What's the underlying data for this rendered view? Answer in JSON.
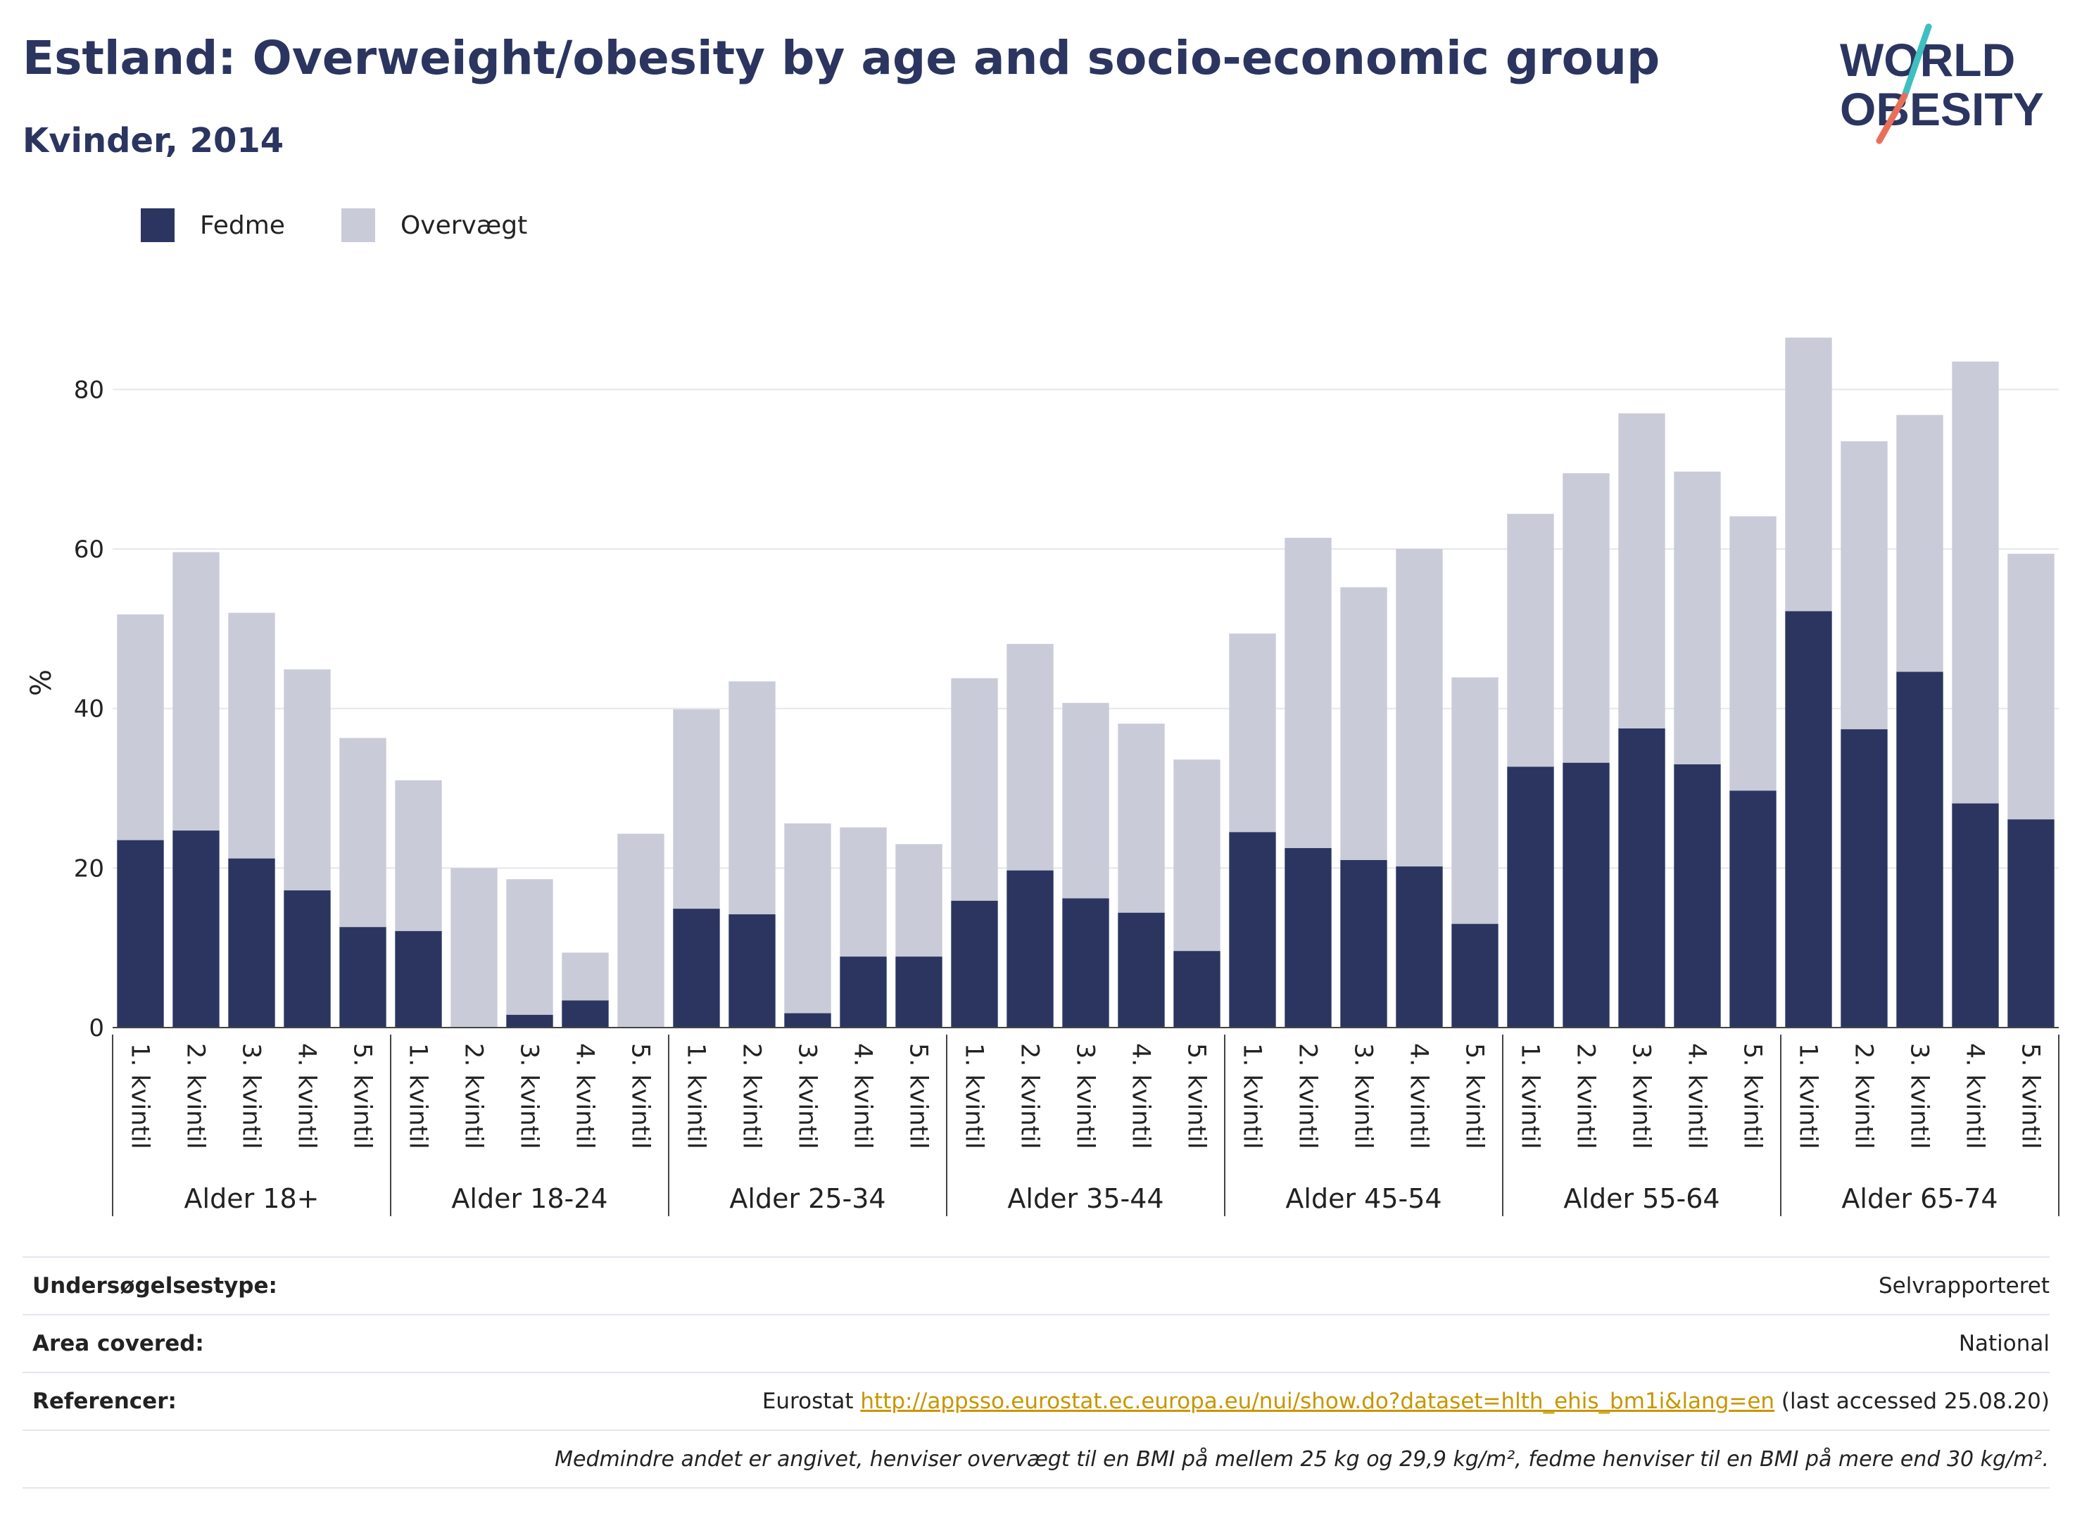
{
  "header": {
    "title": "Estland: Overweight/obesity by age and socio-economic group",
    "subtitle": "Kvinder, 2014"
  },
  "logo": {
    "line1": "WORLD",
    "line2": "OBESITY",
    "accent_colors": [
      "#3fbfbf",
      "#e8705a"
    ],
    "text_color": "#2b3560"
  },
  "legend": [
    {
      "label": "Fedme",
      "color": "#2b3560"
    },
    {
      "label": "Overvægt",
      "color": "#c9cbd8"
    }
  ],
  "chart_data": {
    "type": "bar",
    "stacked": true,
    "ylabel": "%",
    "xlabel": "",
    "ylim": [
      0,
      90
    ],
    "yticks": [
      0,
      20,
      40,
      60,
      80
    ],
    "grid": true,
    "legend_position": "top-left",
    "groups": [
      "Alder 18+",
      "Alder 18-24",
      "Alder 25-34",
      "Alder 35-44",
      "Alder 45-54",
      "Alder 55-64",
      "Alder 65-74"
    ],
    "categories": [
      "1. kvintil",
      "2. kvintil",
      "3. kvintil",
      "4. kvintil",
      "5. kvintil"
    ],
    "series": [
      {
        "name": "Fedme",
        "color": "#2b3560",
        "values": [
          [
            23.5,
            24.7,
            21.2,
            17.2,
            12.6
          ],
          [
            12.1,
            0,
            1.6,
            3.4,
            0
          ],
          [
            14.9,
            14.2,
            1.8,
            8.9,
            8.9
          ],
          [
            15.9,
            19.7,
            16.2,
            14.4,
            9.6
          ],
          [
            24.5,
            22.5,
            21.0,
            20.2,
            13.0
          ],
          [
            32.7,
            33.2,
            37.5,
            33.0,
            29.7
          ],
          [
            52.2,
            37.4,
            44.6,
            28.1,
            26.1
          ]
        ]
      },
      {
        "name": "Overvægt",
        "color": "#c9cbd8",
        "values": [
          [
            28.3,
            34.9,
            30.8,
            27.7,
            23.7
          ],
          [
            18.9,
            20.0,
            17.0,
            6.0,
            24.3
          ],
          [
            25.0,
            29.2,
            23.8,
            16.2,
            14.1
          ],
          [
            27.9,
            28.4,
            24.5,
            23.7,
            24.0
          ],
          [
            24.9,
            38.9,
            34.2,
            39.8,
            30.9
          ],
          [
            31.7,
            36.3,
            39.5,
            36.7,
            34.4
          ],
          [
            34.3,
            36.1,
            32.2,
            55.4,
            33.3
          ]
        ]
      }
    ]
  },
  "meta": {
    "survey_type_label": "Undersøgelsestype:",
    "survey_type_value": "Selvrapporteret",
    "area_label": "Area covered:",
    "area_value": "National",
    "references_label": "Referencer:",
    "references_prefix": "Eurostat ",
    "references_link": "http://appsso.eurostat.ec.europa.eu/nui/show.do?dataset=hlth_ehis_bm1i&lang=en",
    "references_suffix": " (last accessed 25.08.20)",
    "footnote": "Medmindre andet er angivet, henviser overvægt til en BMI på mellem 25 kg og 29,9 kg/m², fedme henviser til en BMI på mere end 30 kg/m²."
  }
}
